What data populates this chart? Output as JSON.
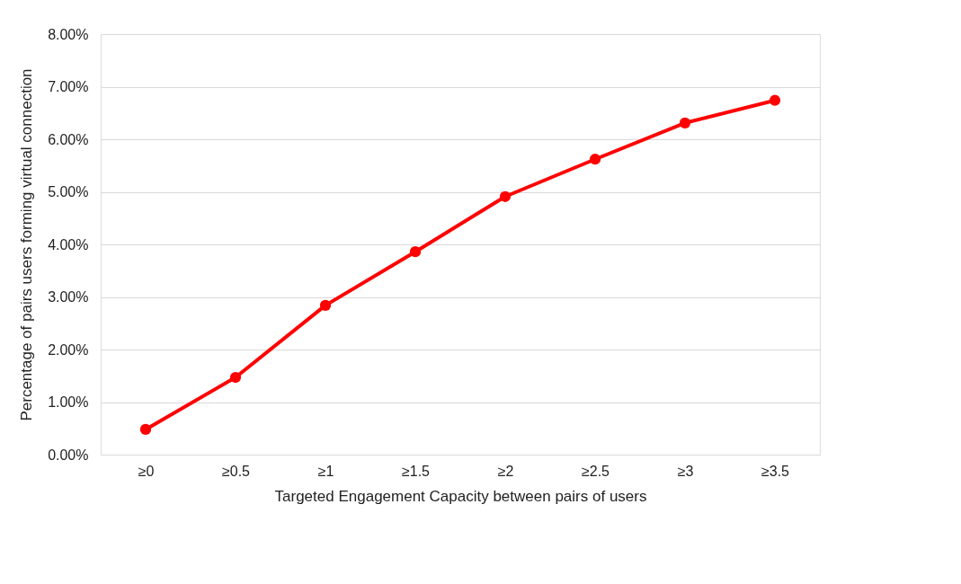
{
  "chart_data": {
    "type": "line",
    "xlabel": "Targeted Engagement Capacity between pairs of users",
    "ylabel": "Percentage of pairs users forming virtual connection",
    "categories": [
      "≥0",
      "≥0.5",
      "≥1",
      "≥1.5",
      "≥2",
      "≥2.5",
      "≥3",
      "≥3.5"
    ],
    "series": [
      {
        "color": "#ff0000",
        "values": [
          0.48,
          1.47,
          2.84,
          3.86,
          4.91,
          5.62,
          6.31,
          6.74
        ]
      }
    ],
    "ylim": [
      0,
      8
    ],
    "yticks": [
      {
        "value": 0,
        "label": "0.00%"
      },
      {
        "value": 1,
        "label": "1.00%"
      },
      {
        "value": 2,
        "label": "2.00%"
      },
      {
        "value": 3,
        "label": "3.00%"
      },
      {
        "value": 4,
        "label": "4.00%"
      },
      {
        "value": 5,
        "label": "5.00%"
      },
      {
        "value": 6,
        "label": "6.00%"
      },
      {
        "value": 7,
        "label": "7.00%"
      },
      {
        "value": 8,
        "label": "8.00%"
      }
    ],
    "grid": "y",
    "marker": "circle",
    "line_style": "solid"
  }
}
